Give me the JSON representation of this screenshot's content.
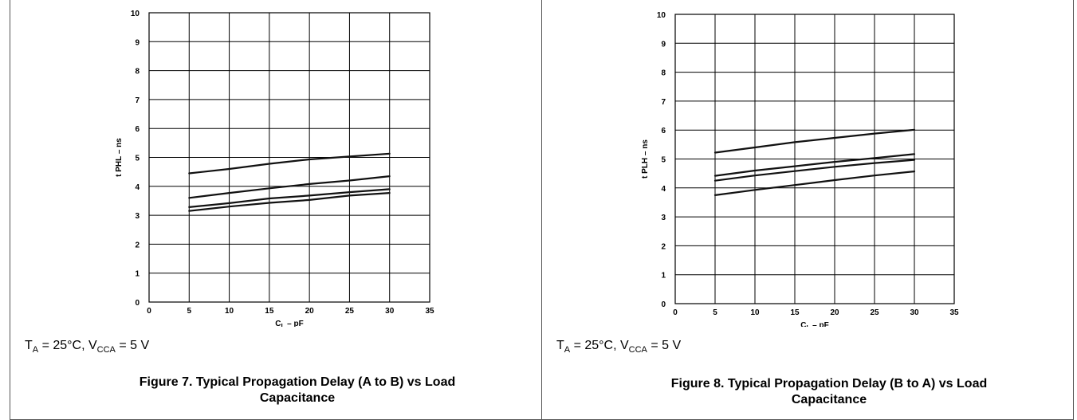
{
  "figures": [
    {
      "conditions": {
        "ta_prefix": "T",
        "ta_sub": "A",
        "ta_mid": " = 25°C, V",
        "vcc_sub": "CCA",
        "vcc_tail": " = 5 V"
      },
      "caption_line1": "Figure 7. Typical Propagation Delay (A to B) vs Load",
      "caption_line2": "Capacitance"
    },
    {
      "conditions": {
        "ta_prefix": "T",
        "ta_sub": "A",
        "ta_mid": " = 25°C, V",
        "vcc_sub": "CCA",
        "vcc_tail": " = 5 V"
      },
      "caption_line1": "Figure 8. Typical Propagation Delay (B to A) vs Load",
      "caption_line2": "Capacitance"
    }
  ],
  "chart_data": [
    {
      "type": "line",
      "xlabel_main": "C",
      "xlabel_sub": "L",
      "xlabel_tail": " – pF",
      "ylabel_main": "t",
      "ylabel_sub": "PHL",
      "ylabel_tail": " – ns",
      "xlim": [
        0,
        35
      ],
      "ylim": [
        0,
        10
      ],
      "xticks": [
        0,
        5,
        10,
        15,
        20,
        25,
        30,
        35
      ],
      "yticks": [
        0,
        1,
        2,
        3,
        4,
        5,
        6,
        7,
        8,
        9,
        10
      ],
      "grid": true,
      "x": [
        5,
        10,
        15,
        20,
        25,
        30
      ],
      "series": [
        {
          "values": [
            4.45,
            4.6,
            4.78,
            4.93,
            5.03,
            5.13
          ]
        },
        {
          "values": [
            3.6,
            3.77,
            3.93,
            4.08,
            4.2,
            4.35
          ]
        },
        {
          "values": [
            3.28,
            3.42,
            3.58,
            3.68,
            3.8,
            3.9
          ]
        },
        {
          "values": [
            3.15,
            3.3,
            3.43,
            3.53,
            3.68,
            3.77
          ]
        }
      ]
    },
    {
      "type": "line",
      "xlabel_main": "C",
      "xlabel_sub": "L",
      "xlabel_tail": " – pF",
      "ylabel_main": "t",
      "ylabel_sub": "PLH",
      "ylabel_tail": " – ns",
      "xlim": [
        0,
        35
      ],
      "ylim": [
        0,
        10
      ],
      "xticks": [
        0,
        5,
        10,
        15,
        20,
        25,
        30,
        35
      ],
      "yticks": [
        0,
        1,
        2,
        3,
        4,
        5,
        6,
        7,
        8,
        9,
        10
      ],
      "grid": true,
      "x": [
        5,
        10,
        15,
        20,
        25,
        30
      ],
      "series": [
        {
          "values": [
            5.22,
            5.4,
            5.58,
            5.73,
            5.88,
            6.01
          ]
        },
        {
          "values": [
            4.42,
            4.6,
            4.75,
            4.9,
            5.03,
            5.17
          ]
        },
        {
          "values": [
            4.25,
            4.43,
            4.58,
            4.73,
            4.86,
            4.97
          ]
        },
        {
          "values": [
            3.75,
            3.93,
            4.1,
            4.27,
            4.43,
            4.57
          ]
        }
      ]
    }
  ]
}
